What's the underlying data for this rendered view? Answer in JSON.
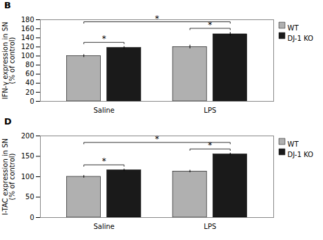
{
  "chart_data": [
    {
      "type": "bar",
      "title": "B",
      "categories": [
        "Saline",
        "LPS"
      ],
      "series": [
        {
          "name": "WT",
          "color": "#b0b0b0",
          "values": [
            100,
            120
          ],
          "errors": [
            3,
            4
          ]
        },
        {
          "name": "DJ-1 KO",
          "color": "#1a1a1a",
          "values": [
            118,
            148
          ],
          "errors": [
            3,
            4
          ]
        }
      ],
      "ylabel": "IFN-γ expression in SN\n(% of control)",
      "ylim": [
        0,
        180
      ],
      "yticks": [
        0,
        20,
        40,
        60,
        80,
        100,
        120,
        140,
        160,
        180
      ],
      "legend": "upper right",
      "annotations": [
        {
          "text": "*",
          "between": [
            [
              "Saline",
              "WT"
            ],
            [
              "Saline",
              "DJ-1 KO"
            ]
          ]
        },
        {
          "text": "*",
          "between": [
            [
              "LPS",
              "WT"
            ],
            [
              "LPS",
              "DJ-1 KO"
            ]
          ]
        },
        {
          "text": "*",
          "between": [
            [
              "Saline",
              "WT"
            ],
            [
              "LPS",
              "DJ-1 KO"
            ]
          ]
        }
      ]
    },
    {
      "type": "bar",
      "title": "D",
      "categories": [
        "Saline",
        "LPS"
      ],
      "series": [
        {
          "name": "WT",
          "color": "#b0b0b0",
          "values": [
            100,
            113
          ],
          "errors": [
            3,
            3
          ]
        },
        {
          "name": "DJ-1 KO",
          "color": "#1a1a1a",
          "values": [
            116,
            155
          ],
          "errors": [
            3,
            3
          ]
        }
      ],
      "ylabel": "I-TAC expression in SN\n(% of control)",
      "ylim": [
        0,
        200
      ],
      "yticks": [
        0,
        50,
        100,
        150,
        200
      ],
      "legend": "upper right",
      "annotations": [
        {
          "text": "*",
          "between": [
            [
              "Saline",
              "WT"
            ],
            [
              "Saline",
              "DJ-1 KO"
            ]
          ]
        },
        {
          "text": "*",
          "between": [
            [
              "LPS",
              "WT"
            ],
            [
              "LPS",
              "DJ-1 KO"
            ]
          ]
        },
        {
          "text": "*",
          "between": [
            [
              "Saline",
              "WT"
            ],
            [
              "LPS",
              "DJ-1 KO"
            ]
          ]
        }
      ]
    }
  ]
}
